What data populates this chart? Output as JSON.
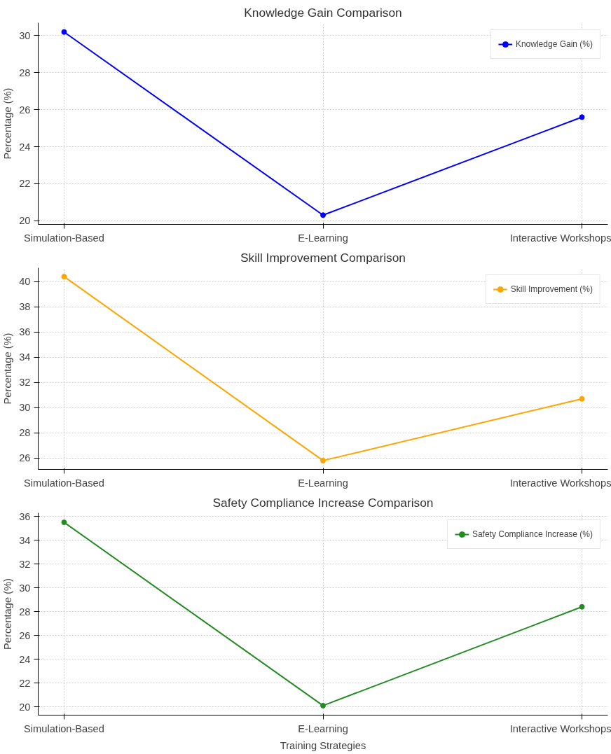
{
  "chart_data": [
    {
      "type": "line",
      "title": "Knowledge Gain Comparison",
      "ylabel": "Percentage (%)",
      "categories": [
        "Simulation-Based",
        "E-Learning",
        "Interactive Workshops"
      ],
      "series": [
        {
          "name": "Knowledge Gain (%)",
          "color": "#0000ff",
          "values": [
            30.2,
            20.3,
            25.6
          ]
        }
      ],
      "ylim": [
        19.8,
        30.7
      ],
      "yticks": [
        20,
        22,
        24,
        26,
        28,
        30
      ],
      "grid": true,
      "legend": "top right",
      "marker": "circle",
      "line_style": "solid"
    },
    {
      "type": "line",
      "title": "Skill Improvement Comparison",
      "ylabel": "Percentage (%)",
      "categories": [
        "Simulation-Based",
        "E-Learning",
        "Interactive Workshops"
      ],
      "series": [
        {
          "name": "Skill Improvement (%)",
          "color": "#ffa500",
          "values": [
            40.4,
            25.8,
            30.7
          ]
        }
      ],
      "ylim": [
        25.1,
        41.1
      ],
      "yticks": [
        26,
        28,
        30,
        32,
        34,
        36,
        38,
        40
      ],
      "grid": true,
      "legend": "top right",
      "marker": "circle",
      "line_style": "solid"
    },
    {
      "type": "line",
      "title": "Safety Compliance Increase Comparison",
      "xlabel": "Training Strategies",
      "ylabel": "Percentage (%)",
      "categories": [
        "Simulation-Based",
        "E-Learning",
        "Interactive Workshops"
      ],
      "series": [
        {
          "name": "Safety Compliance Increase (%)",
          "color": "#228b22",
          "values": [
            35.5,
            20.1,
            28.4
          ]
        }
      ],
      "ylim": [
        19.3,
        36.3
      ],
      "yticks": [
        20,
        22,
        24,
        26,
        28,
        30,
        32,
        34,
        36
      ],
      "grid": true,
      "legend": "top right",
      "marker": "circle",
      "line_style": "solid"
    }
  ]
}
